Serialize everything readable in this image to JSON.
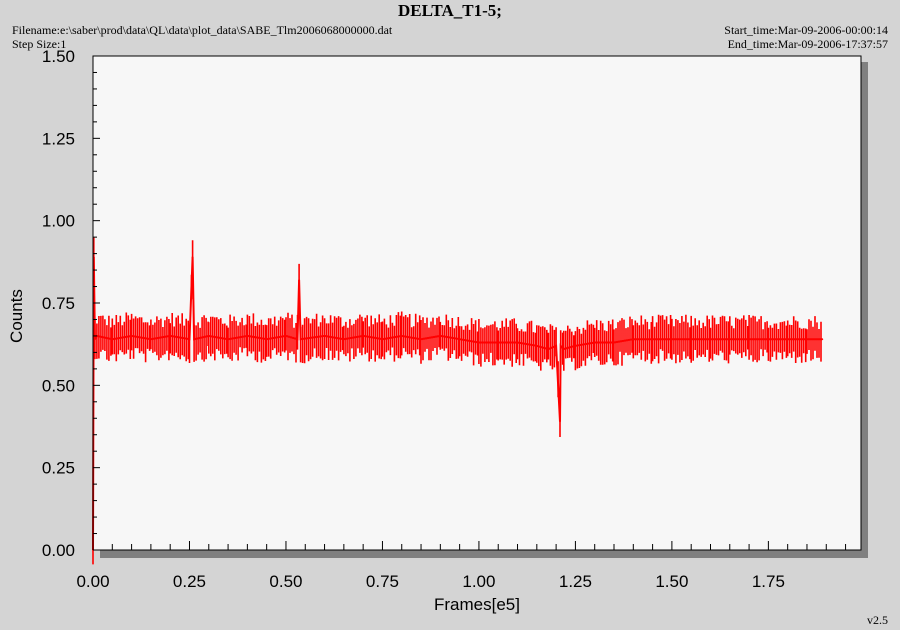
{
  "header": {
    "title": "DELTA_T1-5;",
    "filename": "Filename:e:\\saber\\prod\\data\\QL\\data\\plot_data\\SABE_Tlm2006068000000.dat",
    "step_size": "Step Size:1",
    "start_time": "Start_time:Mar-09-2006-00:00:14",
    "end_time": "End_time:Mar-09-2006-17:37:57"
  },
  "footer": {
    "version": "v2.5"
  },
  "colors": {
    "plot_bg": "#f7f7f7",
    "series": "#ff0000",
    "page_bg": "#d4d4d4",
    "shadow": "#808080"
  },
  "chart_data": {
    "type": "line",
    "title": "DELTA_T1-5;",
    "xlabel": "Frames[e5]",
    "ylabel": "Counts",
    "xlim": [
      0,
      1.99
    ],
    "ylim": [
      0,
      1.5
    ],
    "x_ticks": [
      "0.00",
      "0.25",
      "0.50",
      "0.75",
      "1.00",
      "1.25",
      "1.50",
      "1.75"
    ],
    "y_ticks": [
      "0.00",
      "0.25",
      "0.50",
      "0.75",
      "1.00",
      "1.25",
      "1.50"
    ],
    "grid": false,
    "series": [
      {
        "color": "#ff0000",
        "x": [
          0.0,
          0.002,
          0.005,
          0.01,
          0.05,
          0.1,
          0.15,
          0.2,
          0.25,
          0.258,
          0.262,
          0.3,
          0.35,
          0.4,
          0.45,
          0.5,
          0.53,
          0.534,
          0.538,
          0.6,
          0.65,
          0.7,
          0.75,
          0.8,
          0.85,
          0.9,
          0.95,
          1.0,
          1.05,
          1.1,
          1.15,
          1.18,
          1.2,
          1.21,
          1.212,
          1.22,
          1.25,
          1.3,
          1.35,
          1.4,
          1.45,
          1.5,
          1.55,
          1.6,
          1.65,
          1.7,
          1.75,
          1.8,
          1.85,
          1.89
        ],
        "y": [
          0.0,
          0.89,
          0.64,
          0.65,
          0.64,
          0.65,
          0.64,
          0.65,
          0.64,
          0.89,
          0.64,
          0.65,
          0.64,
          0.65,
          0.64,
          0.65,
          0.64,
          0.82,
          0.64,
          0.65,
          0.64,
          0.65,
          0.64,
          0.65,
          0.64,
          0.65,
          0.64,
          0.63,
          0.63,
          0.63,
          0.62,
          0.61,
          0.62,
          0.39,
          0.62,
          0.61,
          0.62,
          0.63,
          0.63,
          0.64,
          0.64,
          0.64,
          0.64,
          0.64,
          0.64,
          0.64,
          0.64,
          0.64,
          0.64,
          0.64
        ],
        "noise_band": [
          0.57,
          0.72
        ]
      }
    ]
  }
}
